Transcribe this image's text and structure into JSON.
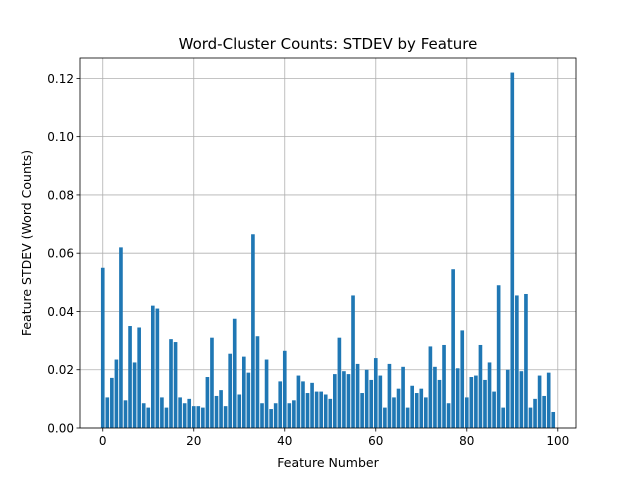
{
  "chart_data": {
    "type": "bar",
    "title": "Word-Cluster Counts: STDEV by Feature",
    "xlabel": "Feature Number",
    "ylabel": "Feature STDEV (Word Counts)",
    "xlim": [
      -5,
      104
    ],
    "ylim": [
      0,
      0.127
    ],
    "xticks": [
      0,
      20,
      40,
      60,
      80,
      100
    ],
    "xtick_labels": [
      "0",
      "20",
      "40",
      "60",
      "80",
      "100"
    ],
    "yticks": [
      0,
      0.02,
      0.04,
      0.06,
      0.08,
      0.1,
      0.12
    ],
    "ytick_labels": [
      "0.00",
      "0.02",
      "0.04",
      "0.06",
      "0.08",
      "0.10",
      "0.12"
    ],
    "grid": true,
    "bar_color": "#1f77b4",
    "x": [
      0,
      1,
      2,
      3,
      4,
      5,
      6,
      7,
      8,
      9,
      10,
      11,
      12,
      13,
      14,
      15,
      16,
      17,
      18,
      19,
      20,
      21,
      22,
      23,
      24,
      25,
      26,
      27,
      28,
      29,
      30,
      31,
      32,
      33,
      34,
      35,
      36,
      37,
      38,
      39,
      40,
      41,
      42,
      43,
      44,
      45,
      46,
      47,
      48,
      49,
      50,
      51,
      52,
      53,
      54,
      55,
      56,
      57,
      58,
      59,
      60,
      61,
      62,
      63,
      64,
      65,
      66,
      67,
      68,
      69,
      70,
      71,
      72,
      73,
      74,
      75,
      76,
      77,
      78,
      79,
      80,
      81,
      82,
      83,
      84,
      85,
      86,
      87,
      88,
      89,
      90,
      91,
      92,
      93,
      94,
      95,
      96,
      97,
      98,
      99
    ],
    "values": [
      0.055,
      0.0105,
      0.0172,
      0.0235,
      0.062,
      0.0095,
      0.035,
      0.0225,
      0.0345,
      0.0085,
      0.007,
      0.042,
      0.041,
      0.0105,
      0.007,
      0.0305,
      0.0295,
      0.0105,
      0.0085,
      0.01,
      0.0075,
      0.0075,
      0.007,
      0.0175,
      0.031,
      0.011,
      0.013,
      0.0075,
      0.0255,
      0.0375,
      0.0115,
      0.0245,
      0.019,
      0.0665,
      0.0315,
      0.0085,
      0.0235,
      0.0065,
      0.0085,
      0.016,
      0.0265,
      0.0085,
      0.0095,
      0.018,
      0.016,
      0.012,
      0.0155,
      0.0125,
      0.0125,
      0.0115,
      0.01,
      0.0185,
      0.031,
      0.0195,
      0.0185,
      0.0455,
      0.022,
      0.012,
      0.02,
      0.0165,
      0.024,
      0.018,
      0.007,
      0.022,
      0.0105,
      0.0135,
      0.021,
      0.007,
      0.0145,
      0.012,
      0.0135,
      0.0105,
      0.028,
      0.021,
      0.0165,
      0.0285,
      0.0085,
      0.0545,
      0.0205,
      0.0335,
      0.0105,
      0.0175,
      0.018,
      0.0285,
      0.0165,
      0.0225,
      0.0125,
      0.049,
      0.007,
      0.02,
      0.122,
      0.0455,
      0.0195,
      0.046,
      0.007,
      0.01,
      0.018,
      0.011,
      0.019,
      0.0055
    ]
  }
}
